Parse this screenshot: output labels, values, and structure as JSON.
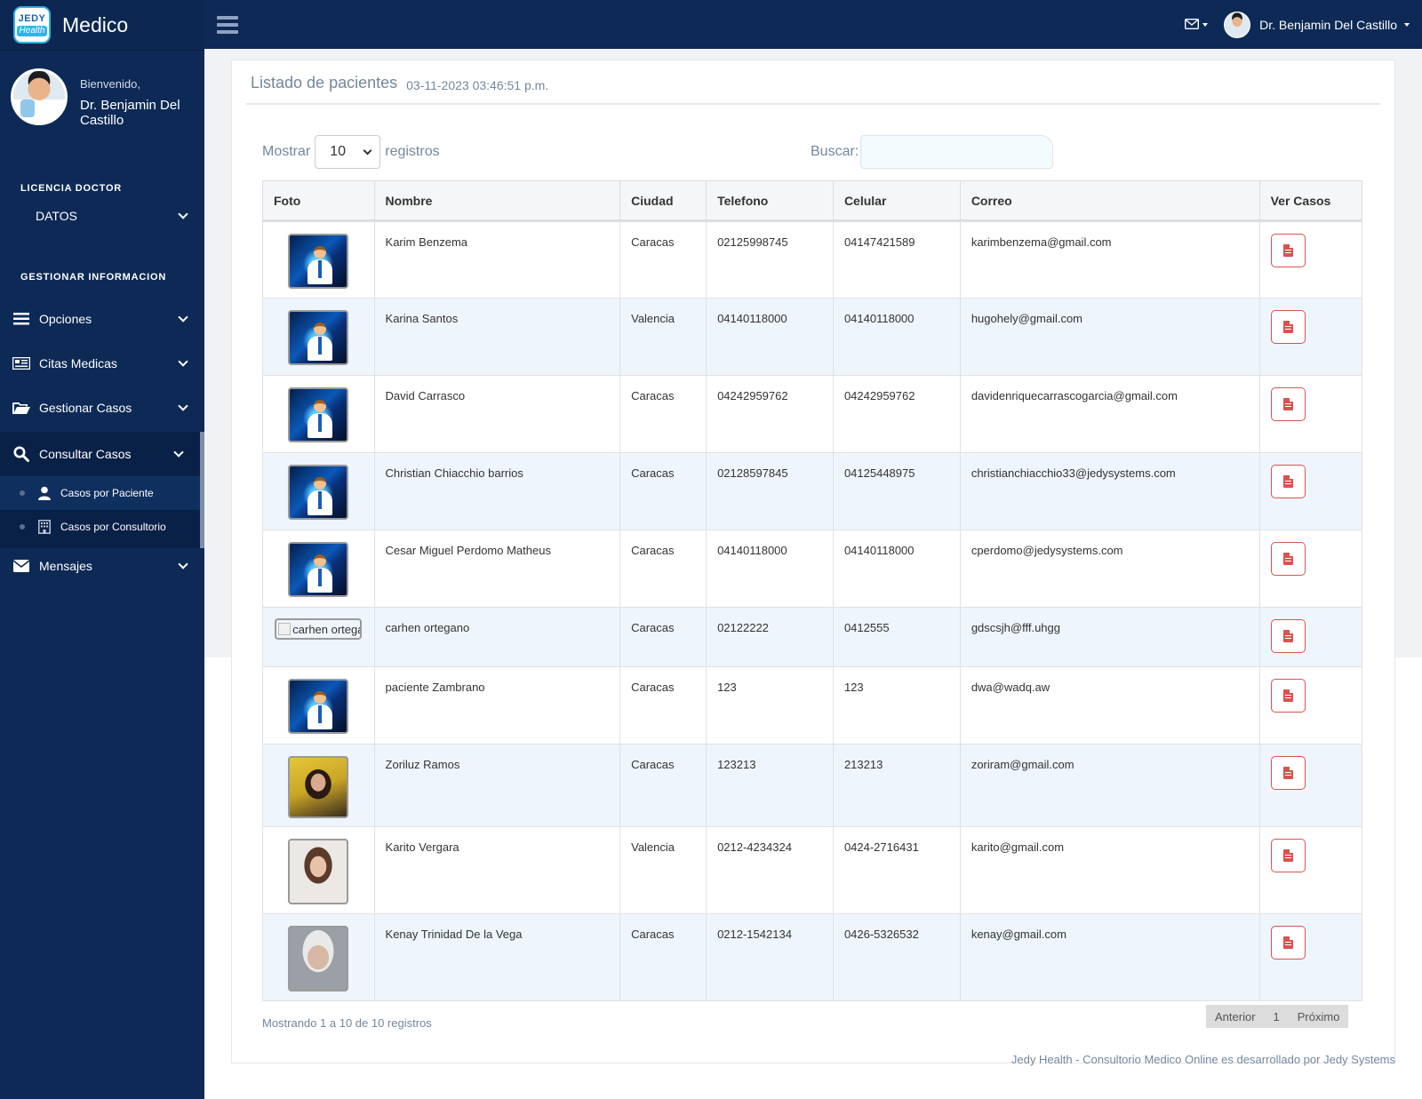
{
  "brand": {
    "logo_top": "JEDY",
    "logo_bottom": "Health",
    "title": "Medico"
  },
  "profile": {
    "welcome": "Bienvenido,",
    "name": "Dr. Benjamin Del Castillo"
  },
  "sidebar": {
    "section1": "LICENCIA DOCTOR",
    "datos": "DATOS",
    "section2": "GESTIONAR INFORMACION",
    "items": [
      {
        "label": "Opciones",
        "icon": "bars-icon"
      },
      {
        "label": "Citas Medicas",
        "icon": "newspaper-icon"
      },
      {
        "label": "Gestionar Casos",
        "icon": "folder-open-icon"
      },
      {
        "label": "Consultar Casos",
        "icon": "search-icon"
      }
    ],
    "submenu": [
      {
        "label": "Casos por Paciente",
        "icon": "user-icon"
      },
      {
        "label": "Casos por Consultorio",
        "icon": "building-icon"
      }
    ],
    "mensajes": "Mensajes"
  },
  "topbar": {
    "user_name": "Dr. Benjamin Del Castillo"
  },
  "panel": {
    "title": "Listado de pacientes",
    "date": "03-11-2023 03:46:51 p.m."
  },
  "controls": {
    "show_label": "Mostrar",
    "show_value": "10",
    "records_label": "registros",
    "search_label": "Buscar:"
  },
  "table": {
    "headers": [
      "Foto",
      "Nombre",
      "Ciudad",
      "Telefono",
      "Celular",
      "Correo",
      "Ver Casos"
    ],
    "rows": [
      {
        "name": "Karim Benzema",
        "city": "Caracas",
        "phone": "02125998745",
        "cell": "04147421589",
        "email": "karimbenzema@gmail.com"
      },
      {
        "name": "Karina Santos",
        "city": "Valencia",
        "phone": "04140118000",
        "cell": "04140118000",
        "email": "hugohely@gmail.com"
      },
      {
        "name": "David Carrasco",
        "city": "Caracas",
        "phone": "04242959762",
        "cell": "04242959762",
        "email": "davidenriquecarrascogarcia@gmail.com"
      },
      {
        "name": "Christian Chiacchio barrios",
        "city": "Caracas",
        "phone": "02128597845",
        "cell": "04125448975",
        "email": "christianchiacchio33@jedysystems.com"
      },
      {
        "name": "Cesar Miguel Perdomo Matheus",
        "city": "Caracas",
        "phone": "04140118000",
        "cell": "04140118000",
        "email": "cperdomo@jedysystems.com"
      },
      {
        "name": "carhen ortegano",
        "city": "Caracas",
        "phone": "02122222",
        "cell": "0412555",
        "email": "gdscsjh@fff.uhgg",
        "photo_alt": "carhen ortega"
      },
      {
        "name": "paciente Zambrano",
        "city": "Caracas",
        "phone": "123",
        "cell": "123",
        "email": "dwa@wadq.aw"
      },
      {
        "name": "Zoriluz Ramos",
        "city": "Caracas",
        "phone": "123213",
        "cell": "213213",
        "email": "zoriram@gmail.com"
      },
      {
        "name": "Karito Vergara",
        "city": "Valencia",
        "phone": "0212-4234324",
        "cell": "0424-2716431",
        "email": "karito@gmail.com"
      },
      {
        "name": "Kenay Trinidad De la Vega",
        "city": "Caracas",
        "phone": "0212-1542134",
        "cell": "0426-5326532",
        "email": "kenay@gmail.com"
      }
    ]
  },
  "pagination": {
    "info": "Mostrando 1 a 10 de 10 registros",
    "prev": "Anterior",
    "page": "1",
    "next": "Próximo"
  },
  "footer": {
    "text": "Jedy Health - Consultorio Medico Online es desarrollado por Jedy Systems"
  },
  "colors": {
    "sidebar": "#0d2a56",
    "accent_danger": "#d9534f",
    "row_alt": "#eef5fc"
  }
}
